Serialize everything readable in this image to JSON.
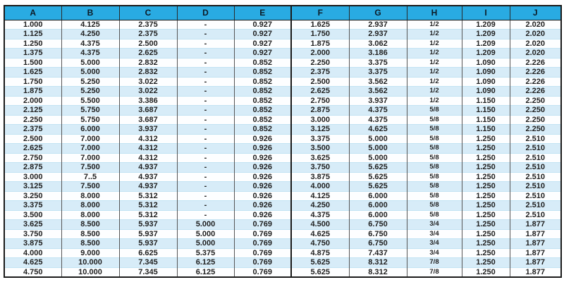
{
  "colors": {
    "header_bg": "#29abe2",
    "stripe_blue": "#d7ecf8",
    "row_white": "#fdfeff",
    "grid_dark": "#1a1a1a",
    "grid_faint": "#c2e3f3"
  },
  "chart_data": {
    "type": "table",
    "title": "",
    "headers": [
      "A",
      "B",
      "C",
      "D",
      "E",
      "F",
      "G",
      "H",
      "I",
      "J"
    ],
    "rows": [
      [
        "1.000",
        "4.125",
        "2.375",
        "-",
        "0.927",
        "1.625",
        "2.937",
        "1/2",
        "1.209",
        "2.020"
      ],
      [
        "1.125",
        "4.250",
        "2.375",
        "-",
        "0.927",
        "1.750",
        "2.937",
        "1/2",
        "1.209",
        "2.020"
      ],
      [
        "1.250",
        "4.375",
        "2.500",
        "-",
        "0.927",
        "1.875",
        "3.062",
        "1/2",
        "1.209",
        "2.020"
      ],
      [
        "1.375",
        "4.375",
        "2.625",
        "-",
        "0.927",
        "2.000",
        "3.186",
        "1/2",
        "1.209",
        "2.020"
      ],
      [
        "1.500",
        "5.000",
        "2.832",
        "-",
        "0.852",
        "2.250",
        "3.375",
        "1/2",
        "1.090",
        "2.226"
      ],
      [
        "1.625",
        "5.000",
        "2.832",
        "-",
        "0.852",
        "2.375",
        "3.375",
        "1/2",
        "1.090",
        "2.226"
      ],
      [
        "1.750",
        "5.250",
        "3.022",
        "-",
        "0.852",
        "2.500",
        "3.562",
        "1/2",
        "1.090",
        "2.226"
      ],
      [
        "1.875",
        "5.250",
        "3.022",
        "-",
        "0.852",
        "2.625",
        "3.562",
        "1/2",
        "1.090",
        "2.226"
      ],
      [
        "2.000",
        "5.500",
        "3.386",
        "-",
        "0.852",
        "2.750",
        "3.937",
        "1/2",
        "1.150",
        "2.250"
      ],
      [
        "2.125",
        "5.750",
        "3.687",
        "-",
        "0.852",
        "2.875",
        "4.375",
        "5/8",
        "1.150",
        "2.250"
      ],
      [
        "2.250",
        "5.750",
        "3.687",
        "-",
        "0.852",
        "3.000",
        "4.375",
        "5/8",
        "1.150",
        "2.250"
      ],
      [
        "2.375",
        "6.000",
        "3.937",
        "-",
        "0.852",
        "3.125",
        "4.625",
        "5/8",
        "1.150",
        "2.250"
      ],
      [
        "2.500",
        "7.000",
        "4.312",
        "-",
        "0.926",
        "3.375",
        "5.000",
        "5/8",
        "1.250",
        "2.510"
      ],
      [
        "2.625",
        "7.000",
        "4.312",
        "-",
        "0.926",
        "3.500",
        "5.000",
        "5/8",
        "1.250",
        "2.510"
      ],
      [
        "2.750",
        "7.000",
        "4.312",
        "-",
        "0.926",
        "3.625",
        "5.000",
        "5/8",
        "1.250",
        "2.510"
      ],
      [
        "2.875",
        "7.500",
        "4.937",
        "-",
        "0.926",
        "3.750",
        "5.625",
        "5/8",
        "1.250",
        "2.510"
      ],
      [
        "3.000",
        "7..5",
        "4.937",
        "-",
        "0.926",
        "3.875",
        "5.625",
        "5/8",
        "1.250",
        "2.510"
      ],
      [
        "3.125",
        "7.500",
        "4.937",
        "-",
        "0.926",
        "4.000",
        "5.625",
        "5/8",
        "1.250",
        "2.510"
      ],
      [
        "3.250",
        "8.000",
        "5.312",
        "-",
        "0.926",
        "4.125",
        "6.000",
        "5/8",
        "1.250",
        "2.510"
      ],
      [
        "3.375",
        "8.000",
        "5.312",
        "-",
        "0.926",
        "4.250",
        "6.000",
        "5/8",
        "1.250",
        "2.510"
      ],
      [
        "3.500",
        "8.000",
        "5.312",
        "-",
        "0.926",
        "4.375",
        "6.000",
        "5/8",
        "1.250",
        "2.510"
      ],
      [
        "3.625",
        "8.500",
        "5.937",
        "5.000",
        "0.769",
        "4.500",
        "6.750",
        "3/4",
        "1.250",
        "1.877"
      ],
      [
        "3.750",
        "8.500",
        "5.937",
        "5.000",
        "0.769",
        "4.625",
        "6.750",
        "3/4",
        "1.250",
        "1.877"
      ],
      [
        "3.875",
        "8.500",
        "5.937",
        "5.000",
        "0.769",
        "4.750",
        "6.750",
        "3/4",
        "1.250",
        "1.877"
      ],
      [
        "4.000",
        "9.000",
        "6.625",
        "5.375",
        "0.769",
        "4.875",
        "7.437",
        "3/4",
        "1.250",
        "1.877"
      ],
      [
        "4.625",
        "10.000",
        "7.345",
        "6.125",
        "0.769",
        "5.625",
        "8.312",
        "7/8",
        "1.250",
        "1.877"
      ],
      [
        "4.750",
        "10.000",
        "7.345",
        "6.125",
        "0.769",
        "5.625",
        "8.312",
        "7/8",
        "1.250",
        "1.877"
      ]
    ]
  }
}
